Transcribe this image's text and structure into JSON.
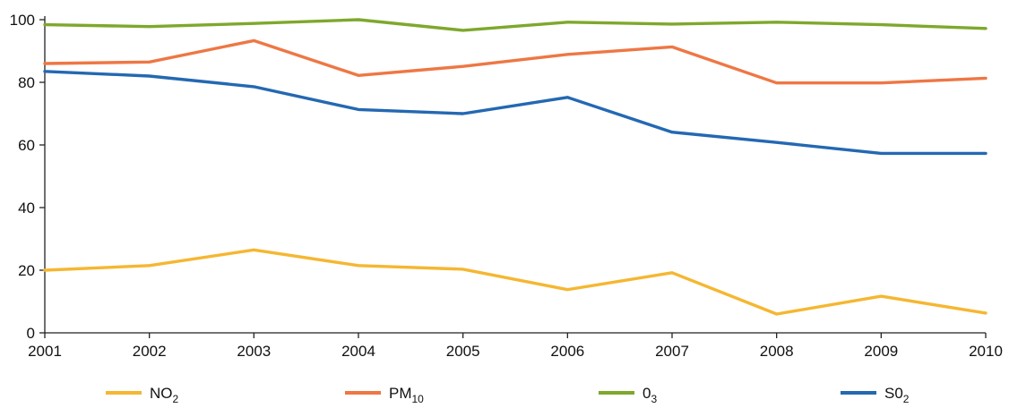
{
  "chart_data": {
    "type": "line",
    "x": [
      "2001",
      "2002",
      "2003",
      "2004",
      "2005",
      "2006",
      "2007",
      "2008",
      "2009",
      "2010"
    ],
    "ylim": [
      0,
      100
    ],
    "y_ticks": [
      "0",
      "20",
      "40",
      "60",
      "80",
      "100"
    ],
    "grid": false,
    "legend_position": "bottom",
    "series": [
      {
        "key": "no2",
        "name": "NO",
        "name_sub": "2",
        "color": "#f5b731",
        "values": [
          20,
          21.5,
          26.5,
          21.5,
          20.3,
          13.8,
          19.2,
          6,
          11.7,
          6.3
        ]
      },
      {
        "key": "pm10",
        "name": "PM",
        "name_sub": "10",
        "color": "#ee7744",
        "values": [
          86,
          86.5,
          93.3,
          82.2,
          85.1,
          88.9,
          91.3,
          79.8,
          79.8,
          81.3
        ]
      },
      {
        "key": "o3",
        "name": "0",
        "name_sub": "3",
        "color": "#7ea82c",
        "values": [
          98.4,
          97.8,
          98.8,
          100,
          96.6,
          99.2,
          98.6,
          99.2,
          98.4,
          97.2
        ]
      },
      {
        "key": "so2",
        "name": "S0",
        "name_sub": "2",
        "color": "#2468b2",
        "values": [
          83.5,
          82,
          78.6,
          71.3,
          70,
          75.2,
          64.1,
          60.8,
          57.3,
          57.3
        ]
      }
    ]
  }
}
